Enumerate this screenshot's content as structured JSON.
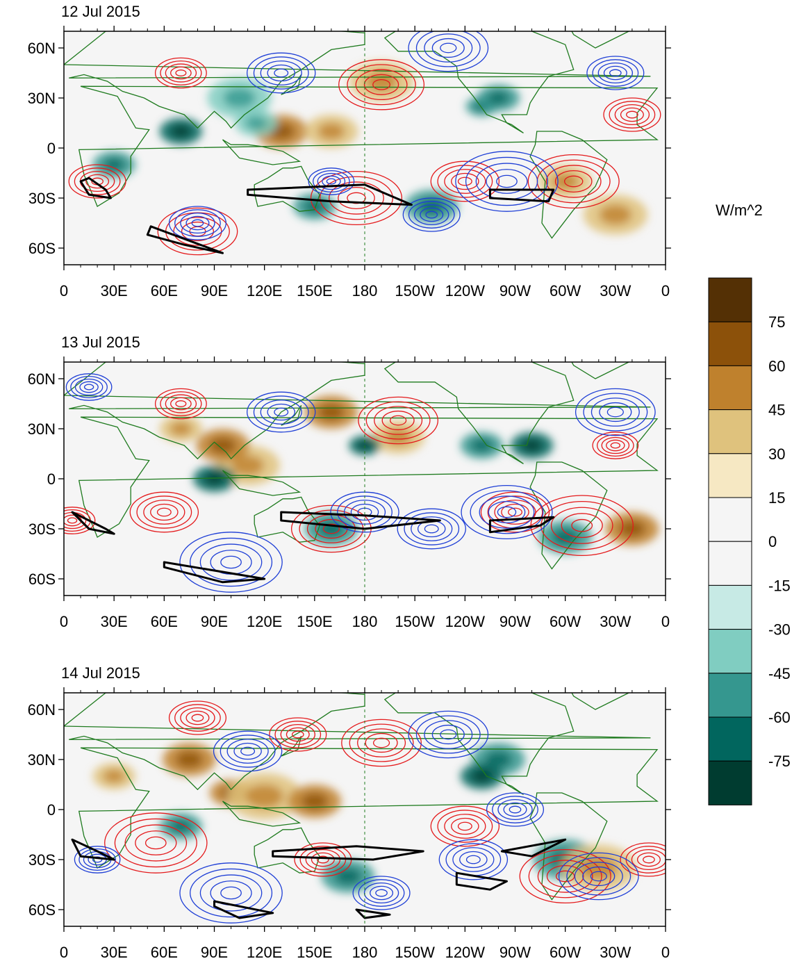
{
  "panels": [
    {
      "title": "12 Jul 2015"
    },
    {
      "title": "13 Jul 2015"
    },
    {
      "title": "14 Jul 2015"
    }
  ],
  "axes": {
    "lon_labels": [
      "0",
      "30E",
      "60E",
      "90E",
      "120E",
      "150E",
      "180",
      "150W",
      "120W",
      "90W",
      "60W",
      "30W",
      "0"
    ],
    "lat_labels": [
      "60N",
      "30N",
      "0",
      "30S",
      "60S"
    ]
  },
  "colorbar": {
    "unit": "W/m^2",
    "labels": [
      "75",
      "60",
      "45",
      "30",
      "15",
      "0",
      "-15",
      "-30",
      "-45",
      "-60",
      "-75"
    ],
    "colors": [
      "#543005",
      "#8c510a",
      "#bf812d",
      "#dfc27d",
      "#f6e8c3",
      "#f5f5f5",
      "#f5f5f5",
      "#c7eae5",
      "#80cdc1",
      "#35978f",
      "#01665e",
      "#003c30"
    ]
  },
  "line_colors": {
    "positive_contour": "#e41a1c",
    "negative_contour": "#1f3fd6",
    "coastline": "#1e7a1e",
    "highlight": "#000000"
  }
}
